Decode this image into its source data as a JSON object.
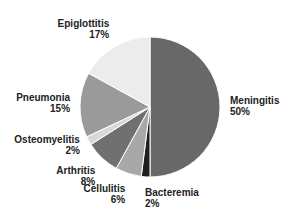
{
  "chart_data": {
    "type": "pie",
    "categories": [
      "Meningitis",
      "Bacteremia",
      "Cellulitis",
      "Arthritis",
      "Osteomyelitis",
      "Pneumonia",
      "Epiglottitis"
    ],
    "values": [
      50,
      2,
      6,
      8,
      2,
      15,
      17
    ],
    "value_labels": [
      "50%",
      "2%",
      "6%",
      "8%",
      "2%",
      "15%",
      "17%"
    ],
    "colors": [
      "#686868",
      "#1e1e1e",
      "#a8a8a8",
      "#707070",
      "#d8d8d8",
      "#9a9a9a",
      "#ececec"
    ],
    "data_labels": true
  }
}
